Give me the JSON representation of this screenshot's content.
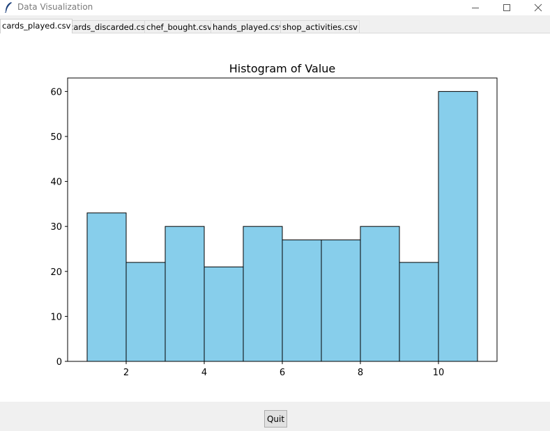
{
  "window": {
    "title": "Data Visualization",
    "controls": [
      "minimize",
      "maximize",
      "close"
    ]
  },
  "tabs": [
    {
      "label": "cards_played.csv",
      "selected": true
    },
    {
      "label": "cards_discarded.csv",
      "selected": false
    },
    {
      "label": "chef_bought.csv",
      "selected": false
    },
    {
      "label": "hands_played.csv",
      "selected": false
    },
    {
      "label": "shop_activities.csv",
      "selected": false
    }
  ],
  "footer": {
    "quit_label": "Quit"
  },
  "chart_data": {
    "type": "bar",
    "title": "Histogram of Value",
    "xlabel": "",
    "ylabel": "",
    "bins": [
      [
        1,
        2
      ],
      [
        2,
        3
      ],
      [
        3,
        4
      ],
      [
        4,
        5
      ],
      [
        5,
        6
      ],
      [
        6,
        7
      ],
      [
        7,
        8
      ],
      [
        8,
        9
      ],
      [
        9,
        10
      ],
      [
        10,
        11
      ]
    ],
    "values": [
      33,
      22,
      30,
      21,
      30,
      27,
      27,
      30,
      22,
      60
    ],
    "xticks": [
      2,
      4,
      6,
      8,
      10
    ],
    "yticks": [
      0,
      10,
      20,
      30,
      40,
      50,
      60
    ],
    "xlim": [
      0.5,
      11.5
    ],
    "ylim": [
      0,
      63
    ],
    "grid": false,
    "colors": {
      "bar_fill": "#87ceeb",
      "bar_edge": "#000000"
    }
  }
}
